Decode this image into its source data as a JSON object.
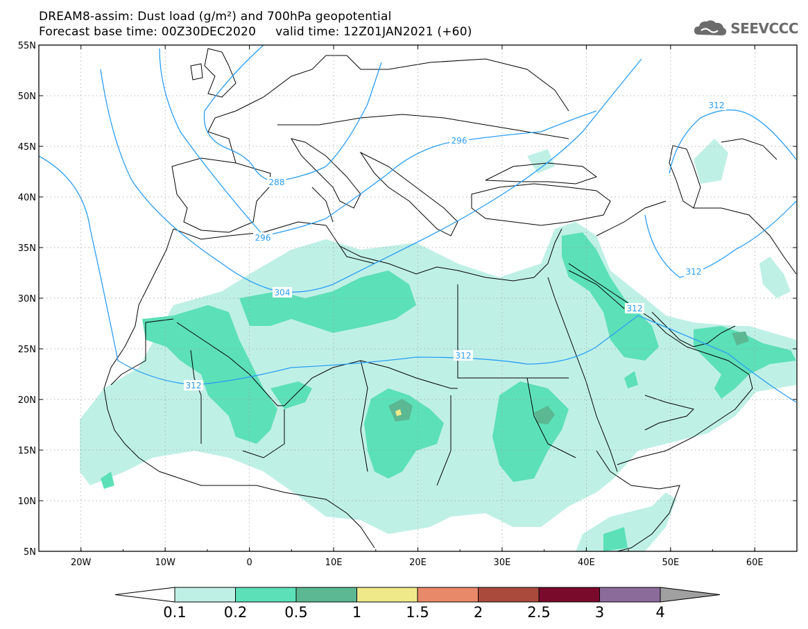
{
  "header": {
    "title_line1": "DREAM8-assim: Dust load (g/m²) and 700hPa geopotential",
    "title_line2": "Forecast base time: 00Z30DEC2020     valid time: 12Z01JAN2021 (+60)",
    "logo_text": "SEEVCCC",
    "logo_icon": "cloud-icon"
  },
  "map": {
    "lon_range": [
      -25,
      65
    ],
    "lat_range": [
      5,
      55
    ],
    "x_ticks": [
      "20W",
      "10W",
      "0",
      "10E",
      "20E",
      "30E",
      "40E",
      "50E",
      "60E"
    ],
    "y_ticks": [
      "55N",
      "50N",
      "45N",
      "40N",
      "35N",
      "30N",
      "25N",
      "20N",
      "15N",
      "10N",
      "5N"
    ],
    "grid": true,
    "contour_labels": [
      "312",
      "296",
      "288",
      "296",
      "304",
      "312",
      "312",
      "312",
      "312"
    ],
    "contour_color": "#2a9df4"
  },
  "colorbar": {
    "labels": [
      "0.1",
      "0.2",
      "0.5",
      "1",
      "1.5",
      "2",
      "2.5",
      "3",
      "4"
    ],
    "colors": [
      "#bff0e6",
      "#5ce0b8",
      "#5bb893",
      "#f0e98a",
      "#e8896a",
      "#a94a3d",
      "#7a0a2c",
      "#8b6b9a"
    ],
    "under_color": "#ffffff",
    "over_color": "#a0a0a0"
  }
}
